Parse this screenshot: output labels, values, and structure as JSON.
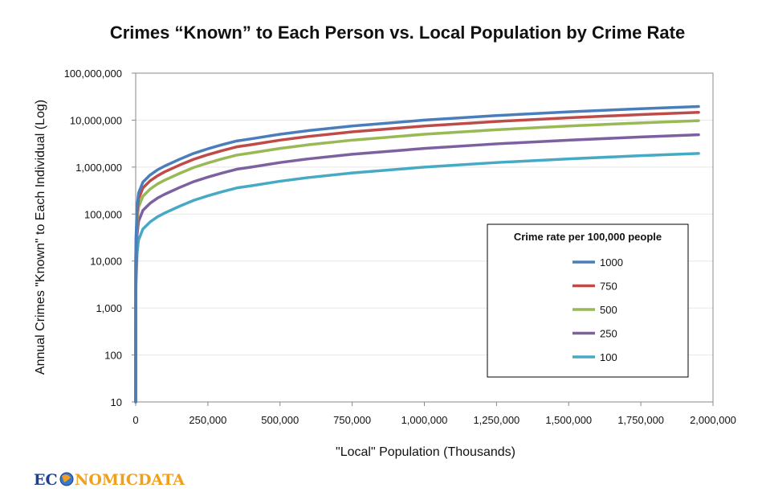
{
  "chart_data": {
    "type": "line",
    "title": "Crimes “Known” to Each Person vs. Local Population by Crime Rate",
    "xlabel": "\"Local\" Population (Thousands)",
    "ylabel": "Annual Crimes \"Known\" to Each Individual (Log)",
    "x_scale": "linear",
    "y_scale": "log",
    "xlim": [
      0,
      2000000
    ],
    "ylim": [
      10,
      100000000
    ],
    "x_ticks": [
      0,
      250000,
      500000,
      750000,
      1000000,
      1250000,
      1500000,
      1750000,
      2000000
    ],
    "x_tick_labels": [
      "0",
      "250,000",
      "500,000",
      "750,000",
      "1,000,000",
      "1,250,000",
      "1,500,000",
      "1,750,000",
      "2,000,000"
    ],
    "y_ticks": [
      10,
      100,
      1000,
      10000,
      100000,
      1000000,
      10000000,
      100000000
    ],
    "y_tick_labels": [
      "10",
      "100",
      "1,000",
      "10,000",
      "100,000",
      "1,000,000",
      "10,000,000",
      "100,000,000"
    ],
    "grid": "horizontal",
    "legend": {
      "title": "Crime rate per 100,000 people",
      "placement": "right"
    },
    "x": [
      1,
      100,
      1000,
      5000,
      10000,
      25000,
      50000,
      75000,
      100000,
      150000,
      200000,
      250000,
      300000,
      350000,
      400000,
      500000,
      600000,
      750000,
      1000000,
      1250000,
      1500000,
      1750000,
      1950000
    ],
    "series": [
      {
        "name": "1000",
        "color": "#4a7ebb",
        "values": [
          10,
          10000,
          30000,
          150000,
          280000,
          480000,
          680000,
          870000,
          1050000,
          1450000,
          1950000,
          2450000,
          3000000,
          3600000,
          4000000,
          5000000,
          6000000,
          7500000,
          10000000,
          12500000,
          15000000,
          17500000,
          19500000
        ]
      },
      {
        "name": "750",
        "color": "#be4b48",
        "values": [
          10,
          7500,
          22500,
          110000,
          210000,
          360000,
          510000,
          650000,
          790000,
          1090000,
          1460000,
          1840000,
          2250000,
          2700000,
          3000000,
          3750000,
          4500000,
          5625000,
          7500000,
          9375000,
          11250000,
          13125000,
          14625000
        ]
      },
      {
        "name": "500",
        "color": "#98b954",
        "values": [
          10,
          5000,
          15000,
          75000,
          140000,
          240000,
          340000,
          435000,
          525000,
          725000,
          975000,
          1225000,
          1500000,
          1800000,
          2000000,
          2500000,
          3000000,
          3750000,
          5000000,
          6250000,
          7500000,
          8750000,
          9750000
        ]
      },
      {
        "name": "250",
        "color": "#7d60a0",
        "values": [
          10,
          2500,
          7500,
          37500,
          70000,
          120000,
          170000,
          218000,
          263000,
          363000,
          488000,
          613000,
          750000,
          900000,
          1000000,
          1250000,
          1500000,
          1875000,
          2500000,
          3125000,
          3750000,
          4375000,
          4875000
        ]
      },
      {
        "name": "100",
        "color": "#46aac5",
        "values": [
          10,
          1000,
          3000,
          15000,
          28000,
          48000,
          68000,
          87000,
          105000,
          145000,
          195000,
          245000,
          300000,
          360000,
          400000,
          500000,
          600000,
          750000,
          1000000,
          1250000,
          1500000,
          1750000,
          1950000
        ]
      }
    ]
  },
  "logo": {
    "text_left": "EC",
    "text_right": "NOMICDATA",
    "icon": "globe-icon",
    "color_left": "#1f3f8f",
    "color_right": "#f0a020"
  }
}
